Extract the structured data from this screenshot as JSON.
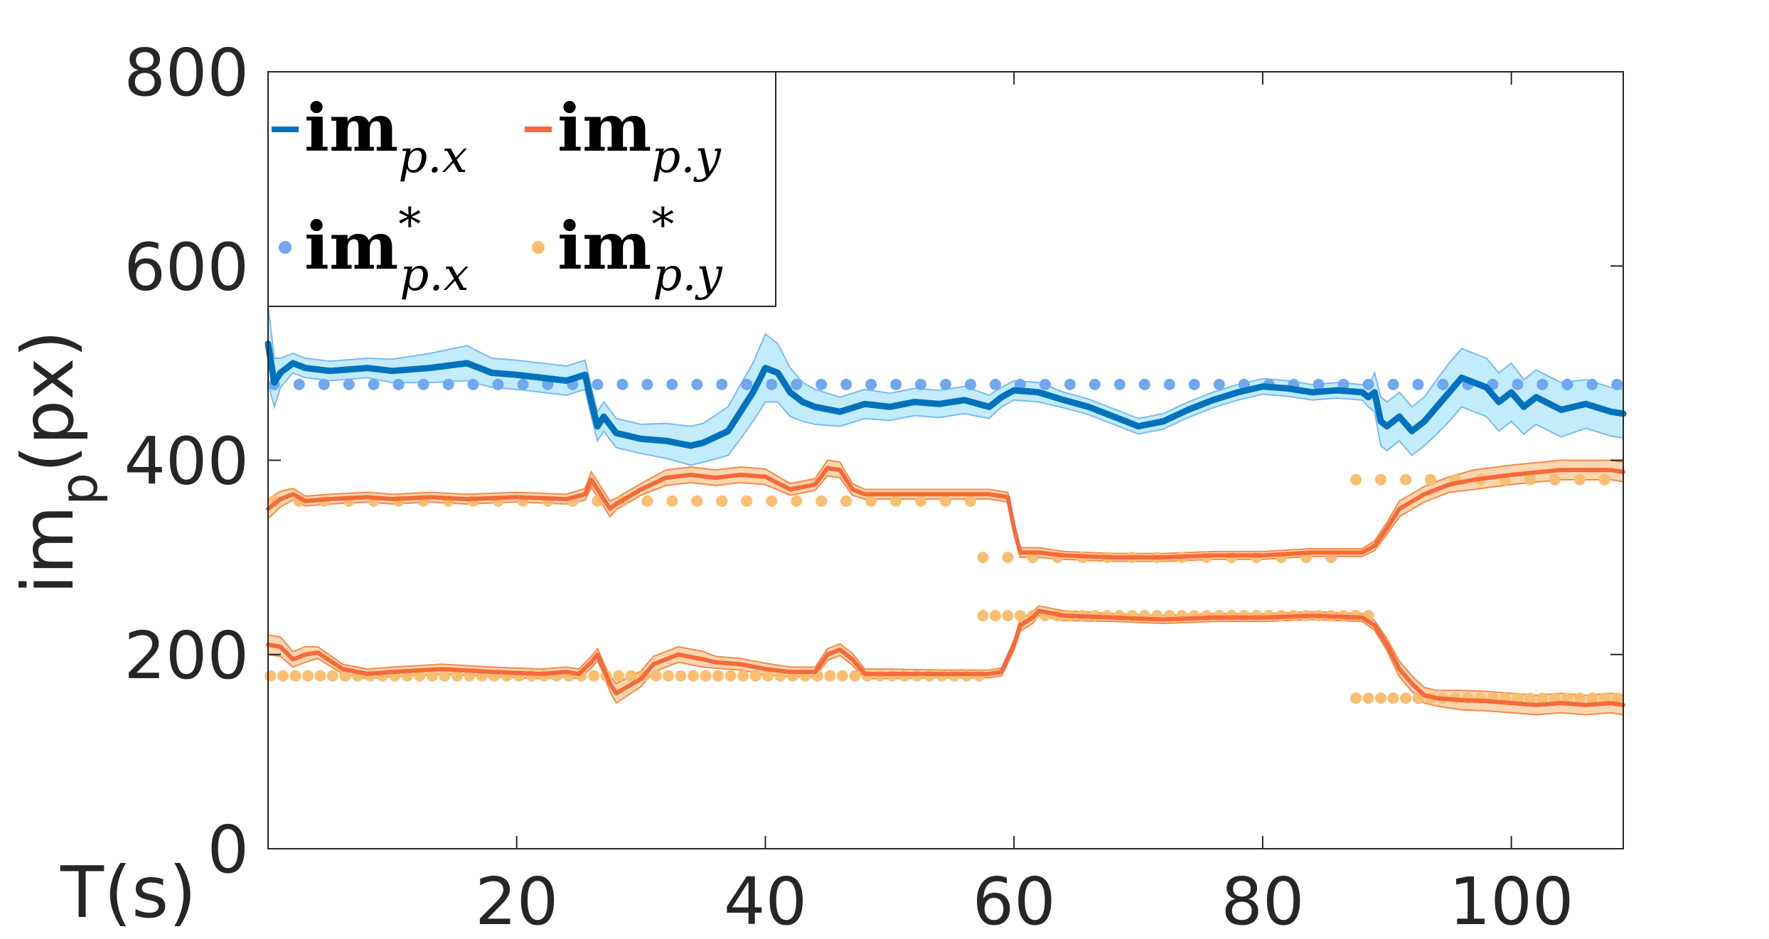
{
  "chart_data": {
    "type": "line",
    "xlabel": "T(s)",
    "ylabel_main": "im",
    "ylabel_sub": "p",
    "ylabel_unit": "(px)",
    "xlim": [
      0,
      109
    ],
    "ylim": [
      0,
      800
    ],
    "xticks": [
      20,
      40,
      60,
      80,
      100
    ],
    "yticks": [
      0,
      200,
      400,
      600,
      800
    ],
    "grid": false,
    "legend_placement": "top-left",
    "legend": [
      {
        "main": "im",
        "sub": "p.x",
        "sup": "",
        "marker": "line",
        "color": "#0072bd"
      },
      {
        "main": "im",
        "sub": "p.y",
        "sup": "",
        "marker": "line",
        "color": "#f5693a"
      },
      {
        "main": "im",
        "sub": "p.x",
        "sup": "*",
        "marker": "dot",
        "color": "#6fa8f0"
      },
      {
        "main": "im",
        "sub": "p.y",
        "sup": "*",
        "marker": "dot",
        "color": "#f9be72"
      }
    ],
    "colors": {
      "x_line": "#0072bd",
      "x_band": "#c2ecfb",
      "x_band_edge": "#7db9f0",
      "y_line": "#f5693a",
      "y_band": "#fbd6ae",
      "y_band_edge": "#f38a4a",
      "x_ref": "#6fa8f0",
      "y_ref": "#f9be72"
    },
    "series": [
      {
        "name": "im_p.x (measured)",
        "x": [
          0,
          0.5,
          1,
          2,
          3,
          5,
          8,
          10,
          13,
          16,
          18,
          20,
          22,
          24,
          25.5,
          26,
          26.5,
          27,
          28,
          30,
          32,
          34,
          35,
          37,
          38,
          39,
          40,
          41,
          42,
          43,
          44,
          46,
          48,
          50,
          52,
          54,
          56,
          58,
          59,
          60,
          62,
          64,
          66,
          68,
          70,
          72,
          74,
          76,
          78,
          80,
          82,
          84,
          86,
          88,
          88.5,
          89,
          89.5,
          90,
          91,
          92,
          93,
          94,
          95,
          96,
          97,
          98,
          99,
          100,
          101,
          102,
          104,
          106,
          108,
          109
        ],
        "y": [
          520,
          480,
          490,
          500,
          495,
          492,
          495,
          492,
          495,
          500,
          490,
          488,
          485,
          482,
          488,
          460,
          435,
          445,
          428,
          422,
          420,
          415,
          418,
          430,
          450,
          470,
          495,
          490,
          470,
          460,
          455,
          450,
          458,
          455,
          460,
          458,
          462,
          455,
          465,
          472,
          470,
          462,
          455,
          445,
          435,
          440,
          452,
          462,
          470,
          476,
          474,
          470,
          472,
          470,
          465,
          470,
          440,
          435,
          445,
          430,
          440,
          455,
          470,
          485,
          480,
          475,
          460,
          470,
          455,
          465,
          452,
          458,
          450,
          448
        ],
        "spread": [
          40,
          25,
          15,
          10,
          10,
          10,
          10,
          12,
          15,
          18,
          15,
          15,
          15,
          15,
          15,
          15,
          15,
          15,
          15,
          15,
          18,
          20,
          20,
          25,
          28,
          30,
          35,
          30,
          25,
          20,
          18,
          15,
          15,
          14,
          14,
          14,
          14,
          12,
          10,
          10,
          10,
          8,
          8,
          8,
          8,
          8,
          8,
          8,
          8,
          8,
          8,
          8,
          8,
          8,
          10,
          20,
          25,
          25,
          25,
          25,
          25,
          28,
          30,
          30,
          30,
          30,
          30,
          30,
          28,
          28,
          28,
          25,
          25,
          25
        ]
      },
      {
        "name": "im_p.y (upper, measured)",
        "x": [
          0,
          1,
          2,
          3,
          5,
          8,
          10,
          13,
          16,
          20,
          24,
          25.5,
          26,
          26.5,
          27.5,
          28,
          30,
          32,
          34,
          36,
          38,
          40,
          42,
          44,
          45,
          46,
          47,
          48,
          50,
          54,
          58,
          59.5,
          60,
          60.5,
          61,
          62,
          64,
          68,
          72,
          76,
          80,
          84,
          88,
          89,
          90,
          91,
          93,
          95,
          97,
          100,
          104,
          108,
          109
        ],
        "y": [
          350,
          360,
          365,
          358,
          360,
          362,
          360,
          362,
          360,
          362,
          360,
          365,
          380,
          370,
          350,
          355,
          370,
          382,
          385,
          382,
          385,
          383,
          370,
          375,
          392,
          390,
          370,
          365,
          365,
          365,
          365,
          362,
          330,
          305,
          305,
          305,
          302,
          300,
          300,
          302,
          302,
          305,
          305,
          312,
          330,
          350,
          365,
          375,
          380,
          385,
          390,
          390,
          388
        ],
        "spread": [
          10,
          8,
          6,
          5,
          5,
          5,
          5,
          5,
          5,
          5,
          5,
          6,
          8,
          8,
          8,
          6,
          6,
          8,
          8,
          8,
          8,
          8,
          6,
          6,
          8,
          8,
          6,
          5,
          5,
          5,
          5,
          5,
          6,
          5,
          5,
          5,
          4,
          4,
          4,
          4,
          4,
          4,
          4,
          5,
          6,
          8,
          8,
          8,
          10,
          10,
          10,
          10,
          10
        ]
      },
      {
        "name": "im_p.y (lower, measured)",
        "x": [
          0,
          1,
          2,
          3,
          4,
          6,
          8,
          10,
          14,
          18,
          22,
          24,
          25,
          26,
          26.5,
          27,
          27.5,
          28,
          30,
          31,
          33,
          35,
          36,
          38,
          40,
          42,
          44,
          45,
          46,
          47,
          48,
          50,
          54,
          58,
          59,
          60,
          60.5,
          61.5,
          62,
          64,
          68,
          72,
          76,
          80,
          84,
          88,
          89,
          90,
          91,
          92,
          93,
          94,
          96,
          98,
          100,
          102,
          104,
          106,
          108,
          109
        ],
        "y": [
          210,
          208,
          195,
          200,
          202,
          185,
          180,
          182,
          185,
          182,
          180,
          182,
          180,
          192,
          200,
          185,
          170,
          160,
          175,
          190,
          200,
          195,
          192,
          190,
          185,
          182,
          182,
          200,
          205,
          195,
          180,
          180,
          180,
          180,
          182,
          210,
          230,
          238,
          245,
          240,
          238,
          236,
          238,
          238,
          240,
          238,
          230,
          210,
          185,
          170,
          158,
          155,
          153,
          152,
          150,
          148,
          150,
          148,
          150,
          148
        ],
        "spread": [
          10,
          10,
          8,
          8,
          6,
          5,
          5,
          5,
          5,
          5,
          5,
          5,
          5,
          6,
          6,
          6,
          8,
          10,
          8,
          8,
          8,
          8,
          6,
          6,
          6,
          5,
          5,
          6,
          6,
          6,
          5,
          5,
          4,
          4,
          4,
          5,
          6,
          6,
          5,
          5,
          4,
          4,
          4,
          4,
          4,
          4,
          5,
          6,
          8,
          8,
          8,
          8,
          10,
          10,
          10,
          10,
          10,
          10,
          10,
          10
        ]
      },
      {
        "name": "im*_p.x (reference)",
        "style": "dots",
        "segments": [
          {
            "x_start": 0.5,
            "x_end": 109,
            "step": 2,
            "y": 478
          }
        ]
      },
      {
        "name": "im*_p.y (reference)",
        "style": "dots",
        "segments": [
          {
            "x_start": 0.5,
            "x_end": 57.5,
            "step": 2,
            "y": 358
          },
          {
            "x_start": 57.5,
            "x_end": 86.5,
            "step": 2,
            "y": 300
          },
          {
            "x_start": 87.5,
            "x_end": 109,
            "step": 2,
            "y": 380
          },
          {
            "x_start": 0.2,
            "x_end": 57.5,
            "step": 1,
            "y": 178
          },
          {
            "x_start": 57.5,
            "x_end": 88.5,
            "step": 1,
            "y": 240
          },
          {
            "x_start": 87.5,
            "x_end": 109,
            "step": 1,
            "y": 155
          }
        ]
      }
    ]
  }
}
